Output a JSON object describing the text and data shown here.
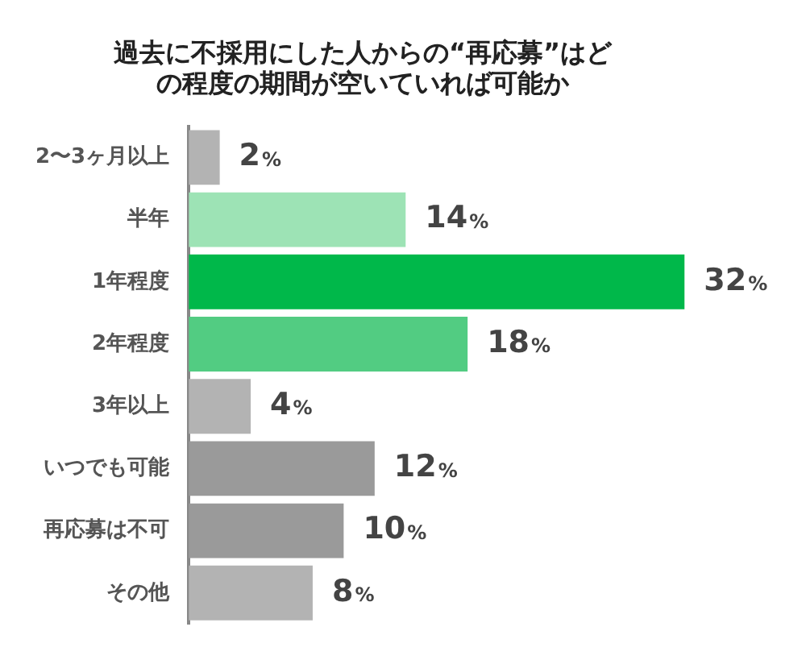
{
  "chart_data": {
    "type": "bar",
    "orientation": "horizontal",
    "title": "過去に不採用にした人からの“再応募”はどの程度の期間が空いていれば可能か",
    "categories": [
      "2〜3ヶ月以上",
      "半年",
      "1年程度",
      "2年程度",
      "3年以上",
      "いつでも可能",
      "再応募は不可",
      "その他"
    ],
    "values": [
      2,
      14,
      32,
      18,
      4,
      12,
      10,
      8
    ],
    "colors": [
      "#b3b3b3",
      "#9de3b5",
      "#00b84a",
      "#52cc82",
      "#b3b3b3",
      "#9a9a9a",
      "#9a9a9a",
      "#b3b3b3"
    ],
    "value_labels": [
      "2%",
      "14%",
      "32%",
      "18%",
      "4%",
      "12%",
      "10%",
      "8%"
    ],
    "legend": false,
    "grid": false
  }
}
